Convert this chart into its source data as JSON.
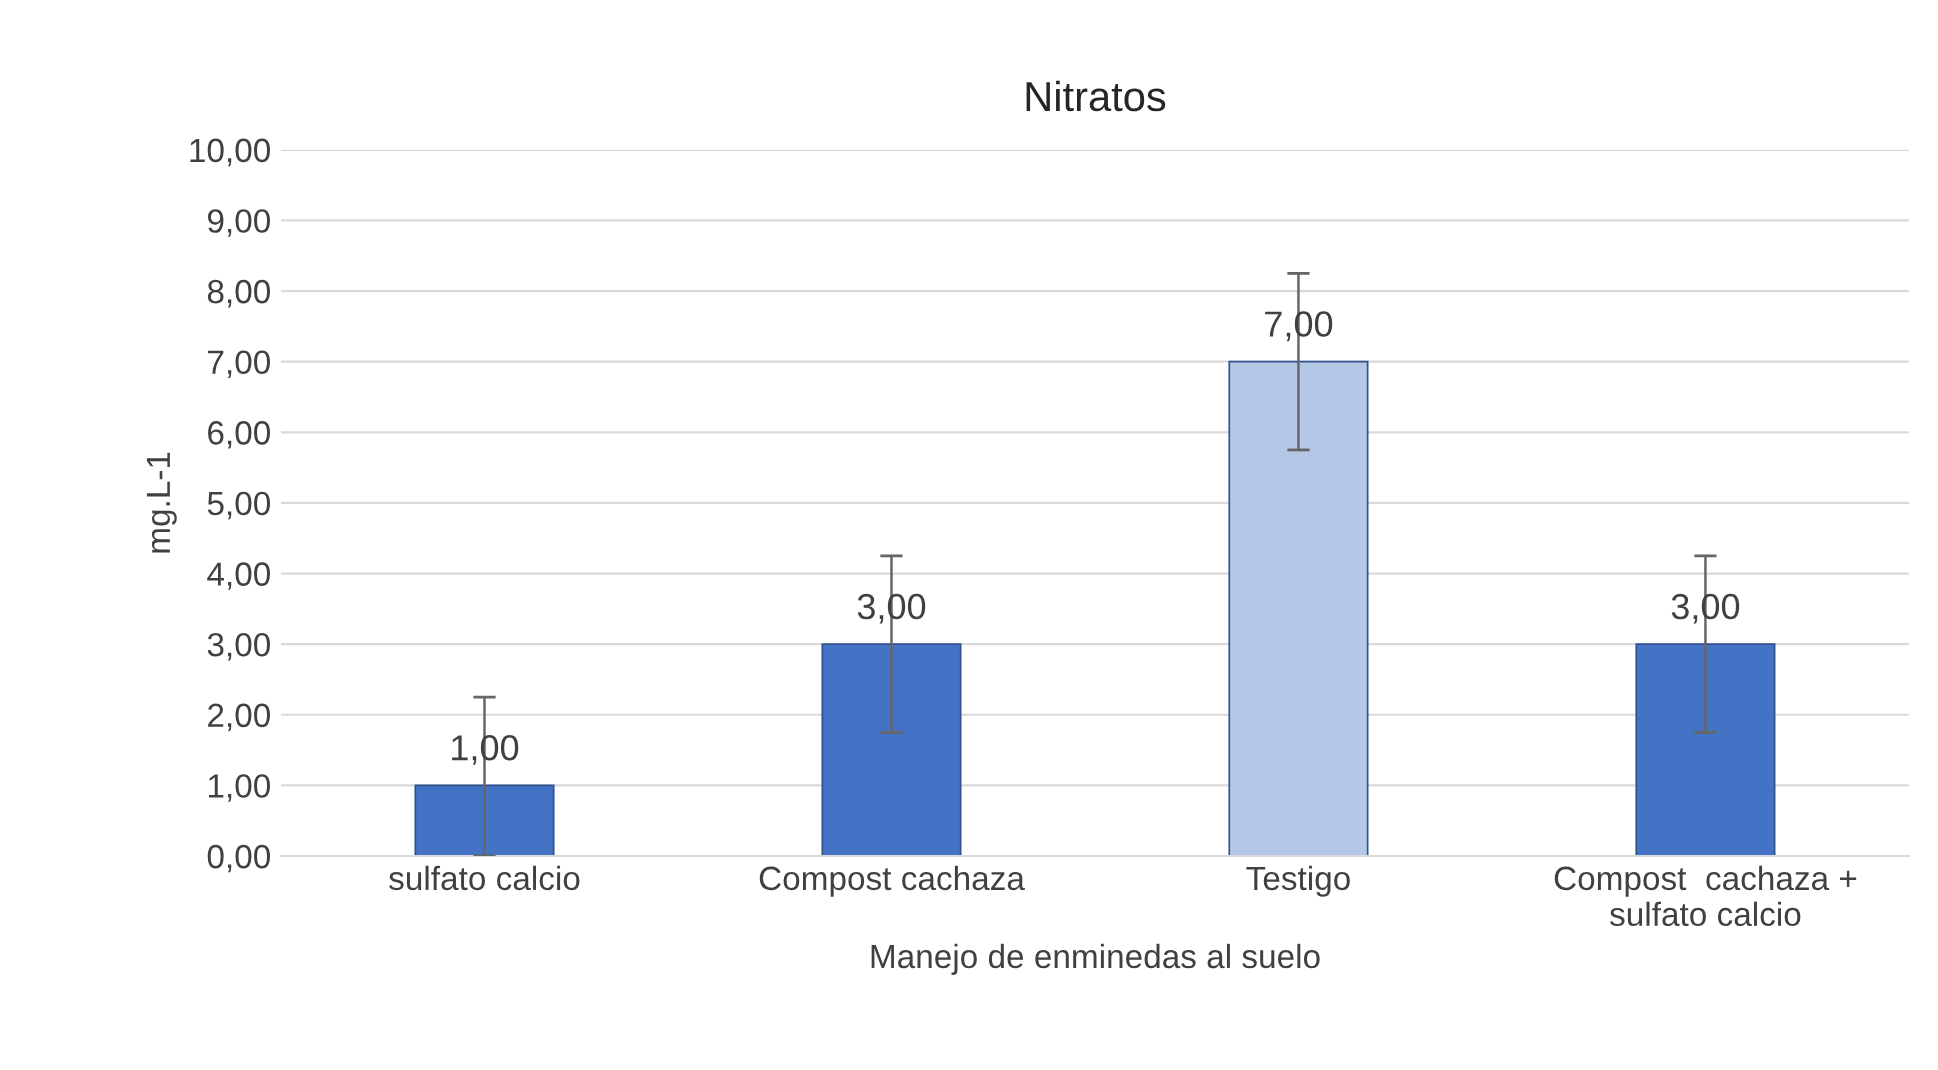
{
  "chart_data": {
    "type": "bar",
    "title": "Nitratos",
    "xlabel": "Manejo de enminedas al suelo",
    "ylabel": "mg.L-1",
    "categories": [
      "sulfato calcio",
      "Compost cachaza",
      "Testigo",
      "Compost  cachaza +\nsulfato calcio"
    ],
    "values": [
      1,
      3,
      7,
      3
    ],
    "colors": [
      "#4472c4",
      "#4472c4",
      "#b4c7e7",
      "#4472c4"
    ],
    "errors": [
      [
        0,
        2.25
      ],
      1.25,
      1.25,
      1.25
    ],
    "value_labels": [
      "1,00",
      "3,00",
      "7,00",
      "3,00"
    ],
    "ylim": [
      0,
      10
    ],
    "yticks": [
      {
        "value": 0,
        "label": "0,00"
      },
      {
        "value": 1,
        "label": "1,00"
      },
      {
        "value": 2,
        "label": "2,00"
      },
      {
        "value": 3,
        "label": "3,00"
      },
      {
        "value": 4,
        "label": "4,00"
      },
      {
        "value": 5,
        "label": "5,00"
      },
      {
        "value": 6,
        "label": "6,00"
      },
      {
        "value": 7,
        "label": "7,00"
      },
      {
        "value": 8,
        "label": "8,00"
      },
      {
        "value": 9,
        "label": "9,00"
      },
      {
        "value": 10,
        "label": "10,00"
      }
    ],
    "grid": "y"
  }
}
